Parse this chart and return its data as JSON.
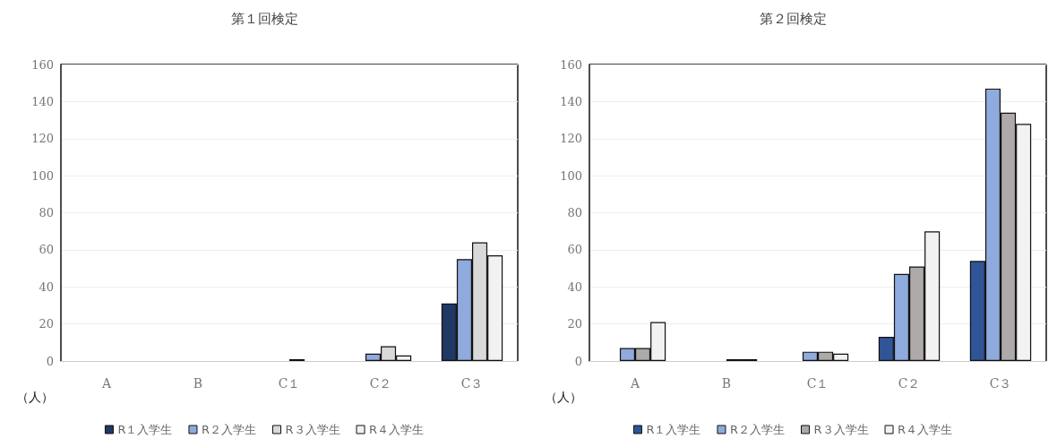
{
  "chart_data": [
    {
      "type": "bar",
      "title": "第１回検定",
      "ylabel": "（人）",
      "categories": [
        "A",
        "B",
        "C１",
        "C２",
        "C３"
      ],
      "series": [
        {
          "name": "R１入学生",
          "color": "#203864",
          "values": [
            0,
            0,
            0,
            0,
            31
          ]
        },
        {
          "name": "R２入学生",
          "color": "#8faadc",
          "values": [
            0,
            0,
            0,
            4,
            55
          ]
        },
        {
          "name": "R３入学生",
          "color": "#d9d9d9",
          "values": [
            0,
            0,
            1,
            8,
            64
          ]
        },
        {
          "name": "R４入学生",
          "color": "#f2f2f2",
          "values": [
            0,
            0,
            0,
            3,
            57
          ]
        }
      ],
      "ylim": [
        0,
        160
      ],
      "yticks": [
        0,
        20,
        40,
        60,
        80,
        100,
        120,
        140,
        160
      ],
      "grid": "y",
      "legend": "bottom"
    },
    {
      "type": "bar",
      "title": "第２回検定",
      "ylabel": "（人）",
      "categories": [
        "A",
        "B",
        "C１",
        "C２",
        "C３"
      ],
      "series": [
        {
          "name": "R１入学生",
          "color": "#2f5597",
          "values": [
            0,
            0,
            0,
            13,
            54
          ]
        },
        {
          "name": "R２入学生",
          "color": "#8faadc",
          "values": [
            7,
            0,
            5,
            47,
            147
          ]
        },
        {
          "name": "R３入学生",
          "color": "#aeaaaa",
          "values": [
            7,
            1,
            5,
            51,
            134
          ]
        },
        {
          "name": "R４入学生",
          "color": "#f2f2f2",
          "values": [
            21,
            1,
            4,
            70,
            128
          ]
        }
      ],
      "ylim": [
        0,
        160
      ],
      "yticks": [
        0,
        20,
        40,
        60,
        80,
        100,
        120,
        140,
        160
      ],
      "grid": "y",
      "legend": "bottom"
    }
  ]
}
